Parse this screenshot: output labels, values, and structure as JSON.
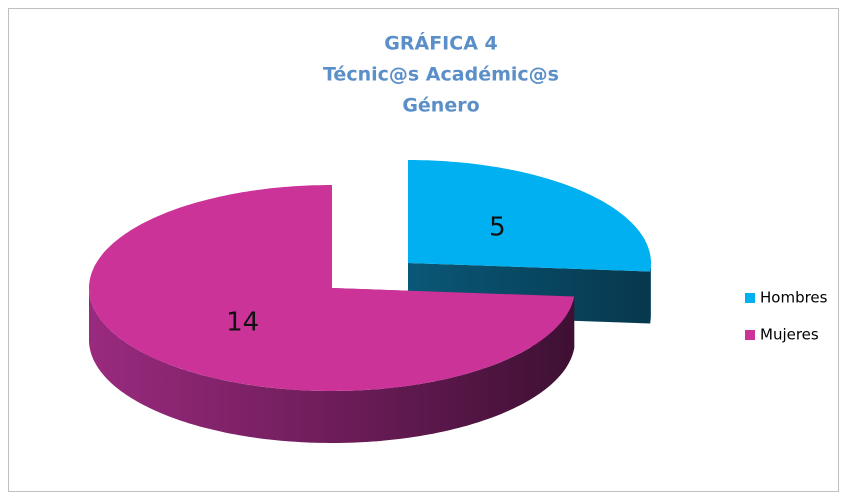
{
  "chart_data": {
    "type": "pie3d",
    "title": [
      "GRÁFICA 4",
      "Técnic@s Académic@s",
      "Género"
    ],
    "categories": [
      "Hombres",
      "Mujeres"
    ],
    "values": [
      5,
      14
    ],
    "colors": [
      "#00b0f0",
      "#cc3399"
    ],
    "exploded": [
      true,
      false
    ],
    "legend": "right"
  }
}
